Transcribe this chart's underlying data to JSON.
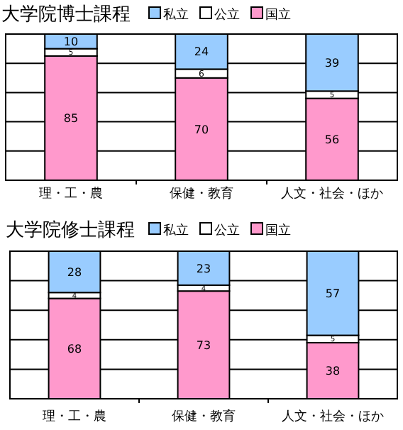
{
  "chart_data": [
    {
      "type": "bar",
      "title": "大学院博士課程",
      "stacked": true,
      "data_labels": true,
      "legend": "top right",
      "grid": "y",
      "tick_labels": "x",
      "ylim": [
        0,
        100
      ],
      "yticks": [
        {
          "value": 0,
          "label": null
        },
        {
          "value": 20,
          "label": null
        },
        {
          "value": 40,
          "label": null
        },
        {
          "value": 60,
          "label": null
        },
        {
          "value": 80,
          "label": null
        },
        {
          "value": 100,
          "label": null
        }
      ],
      "categories": [
        "理・工・農",
        "保健・教育",
        "人文・社会・ほか"
      ],
      "series": [
        {
          "name": "国立",
          "color": "#ff99cc",
          "values": [
            85,
            70,
            56
          ]
        },
        {
          "name": "公立",
          "color": "#ffffff",
          "values": [
            5,
            6,
            5
          ]
        },
        {
          "name": "私立",
          "color": "#99ccff",
          "values": [
            10,
            24,
            39
          ]
        }
      ]
    },
    {
      "type": "bar",
      "title": "大学院修士課程",
      "stacked": true,
      "data_labels": true,
      "legend": "top right",
      "grid": "y",
      "tick_labels": "x",
      "ylim": [
        0,
        100
      ],
      "yticks": [
        {
          "value": 0,
          "label": null
        },
        {
          "value": 20,
          "label": null
        },
        {
          "value": 40,
          "label": null
        },
        {
          "value": 60,
          "label": null
        },
        {
          "value": 80,
          "label": null
        },
        {
          "value": 100,
          "label": null
        }
      ],
      "categories": [
        "理・工・農",
        "保健・教育",
        "人文・社会・ほか"
      ],
      "series": [
        {
          "name": "国立",
          "color": "#ff99cc",
          "values": [
            68,
            73,
            38
          ]
        },
        {
          "name": "公立",
          "color": "#ffffff",
          "values": [
            4,
            4,
            5
          ]
        },
        {
          "name": "私立",
          "color": "#99ccff",
          "values": [
            28,
            23,
            57
          ]
        }
      ]
    }
  ]
}
